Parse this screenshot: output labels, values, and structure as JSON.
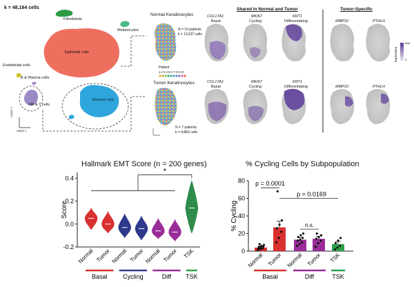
{
  "umap_atlas": {
    "cell_count": "k = 48,164 cells",
    "labels": {
      "fibroblasts": "Fibroblasts",
      "melanocytes": "Melanocytes",
      "epithelial": "Epithelial cells",
      "endothelial": "Endothelial cells",
      "b_plasma": "B & Plasma cells",
      "nk_t": "NK & T cells",
      "myeloid": "Myeloid cells"
    },
    "axis_x": "UMAP 1",
    "axis_y": "UMAP 2",
    "colors": {
      "epithelial": "#ef6f5f",
      "myeloid": "#2ea6dc",
      "fibroblasts": "#2e9a45",
      "melanocytes": "#4bb88a",
      "endothelial": "#d4c12a",
      "b_plasma": "#a78bd0",
      "nk_t": "#9b8ac6"
    }
  },
  "keratinocytes": {
    "normal_title": "Normal Keratinocytes",
    "normal_n": "N = 10 patients",
    "normal_k": "k = 13,637 cells",
    "patient_title": "Patient",
    "patient_ids": "1 2 3 4 5 6 7 8 9 10",
    "tumor_title": "Tumor Keratinocytes",
    "tumor_n": "N = 7 patients",
    "tumor_k": "k = 4,883 cells",
    "shared_header": "Shared in Normal and Tumor",
    "tumor_specific_header": "Tumor-Specific",
    "normal_genes": [
      {
        "gene": "COL17A1",
        "label": "Basal"
      },
      {
        "gene": "MKI67",
        "label": "Cycling"
      },
      {
        "gene": "KRT1",
        "label": "Differentiating"
      },
      {
        "gene": "MMP10",
        "label": ""
      },
      {
        "gene": "PTHLH",
        "label": ""
      }
    ],
    "tumor_genes": [
      {
        "gene": "COL17A1",
        "label": "Basal"
      },
      {
        "gene": "MKI67",
        "label": "Cycling"
      },
      {
        "gene": "KRT1",
        "label": "Differentiating"
      },
      {
        "gene": "MMP10",
        "label": ""
      },
      {
        "gene": "PTHLH",
        "label": ""
      }
    ],
    "legend_title": "Expression",
    "legend_max": "Max",
    "legend_min": "0"
  },
  "emt_chart": {
    "chart_data": {
      "type": "violin",
      "title": "Hallmark EMT Score (n = 200 genes)",
      "ylabel": "Score",
      "ylim": [
        -0.2,
        0.45
      ],
      "yticks": [
        "0.4",
        "0.2",
        "0.0",
        "-0.2"
      ],
      "ytick_values": [
        0.4,
        0.2,
        0.0,
        -0.2
      ],
      "categories": [
        "Normal",
        "Tumor",
        "Normal",
        "Tumor",
        "Normal",
        "Tumor",
        "TSK"
      ],
      "medians": [
        0.05,
        0.0,
        -0.03,
        -0.04,
        -0.06,
        -0.07,
        0.14
      ],
      "ranges": [
        [
          -0.05,
          0.14
        ],
        [
          -0.08,
          0.11
        ],
        [
          -0.12,
          0.09
        ],
        [
          -0.14,
          0.07
        ],
        [
          -0.13,
          0.05
        ],
        [
          -0.15,
          0.04
        ],
        [
          -0.08,
          0.38
        ]
      ],
      "colors": [
        "#d93030",
        "#d93030",
        "#2e3a8c",
        "#2e3a8c",
        "#9a2d9a",
        "#9a2d9a",
        "#2e8b4a"
      ],
      "groups": [
        {
          "name": "Basal",
          "color": "#d93030"
        },
        {
          "name": "Cycling",
          "color": "#2e3a8c"
        },
        {
          "name": "Diff",
          "color": "#9a2d9a"
        },
        {
          "name": "TSK",
          "color": "#2ea04a"
        }
      ],
      "significance": "*"
    }
  },
  "cycling_chart": {
    "chart_data": {
      "type": "bar",
      "title": "% Cycling Cells by Subpopulation",
      "ylabel": "% Cycling",
      "ylim": [
        0,
        80
      ],
      "yticks": [
        "80",
        "60",
        "40",
        "20",
        "0"
      ],
      "ytick_values": [
        80,
        60,
        40,
        20,
        0
      ],
      "categories": [
        "Normal",
        "Tumor",
        "Normal",
        "Tumor",
        "TSK"
      ],
      "values": [
        4,
        27,
        13,
        14,
        8
      ],
      "errors": [
        1.5,
        7,
        2.5,
        3,
        3
      ],
      "colors": [
        "#d93030",
        "#d93030",
        "#9a2d9a",
        "#9a2d9a",
        "#2ea04a"
      ],
      "points": [
        [
          1,
          2,
          3,
          3,
          4,
          5,
          5,
          6,
          7,
          8
        ],
        [
          10,
          15,
          22,
          26,
          30,
          35,
          68
        ],
        [
          6,
          8,
          10,
          12,
          13,
          15,
          16,
          18,
          20
        ],
        [
          5,
          9,
          12,
          14,
          16,
          18,
          20
        ],
        [
          2,
          4,
          6,
          9,
          12,
          15
        ]
      ],
      "groups": [
        {
          "name": "Basal",
          "color": "#d93030"
        },
        {
          "name": "Diff",
          "color": "#9a2d9a"
        },
        {
          "name": "TSK",
          "color": "#2ea04a"
        }
      ],
      "annotations": [
        "p = 0.0001",
        "p = 0.0169",
        "n.s."
      ]
    }
  }
}
